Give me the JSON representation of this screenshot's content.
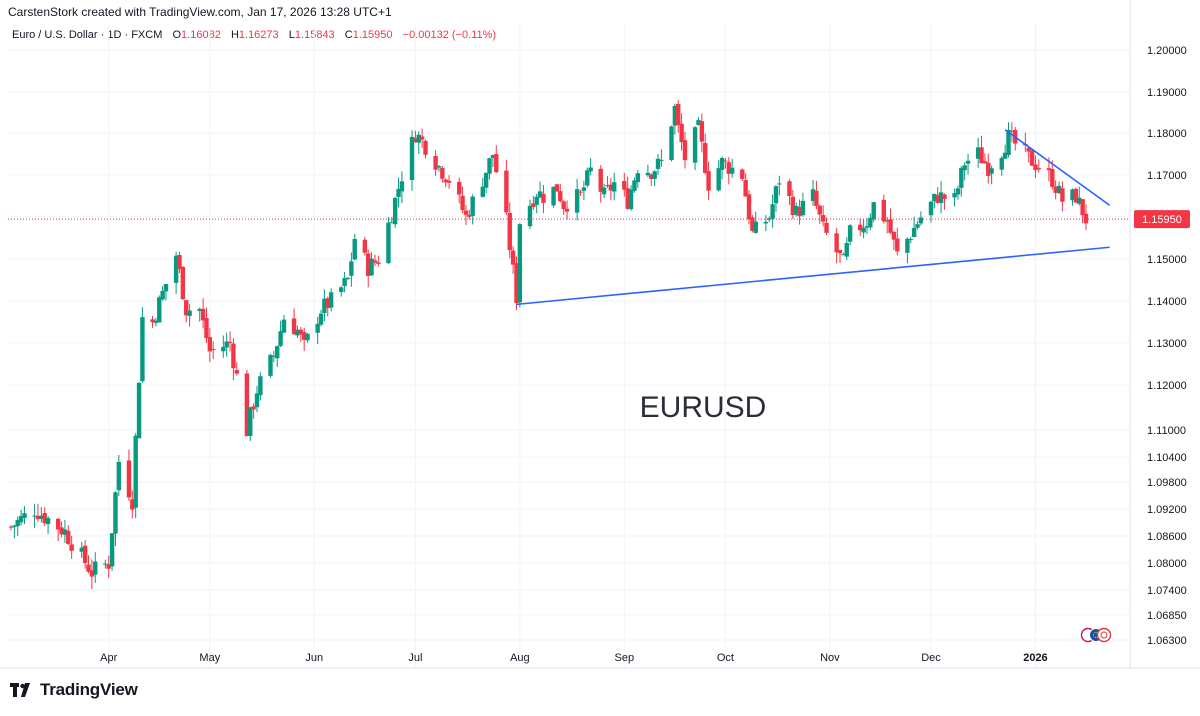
{
  "header": {
    "attribution": "CarstenStork created with TradingView.com, Jan 17, 2026 13:28 UTC+1"
  },
  "legend": {
    "symbol": "Euro / U.S. Dollar · 1D · FXCM",
    "open_label": "O",
    "open": "1.16082",
    "high_label": "H",
    "high": "1.16273",
    "low_label": "L",
    "low": "1.15843",
    "close_label": "C",
    "close": "1.15950",
    "change": "−0.00132 (−0.11%)"
  },
  "footer": {
    "brand": "TradingView"
  },
  "colors": {
    "up": "#089981",
    "down": "#f23645",
    "trendline": "#2962ff",
    "price_line": "#f23645",
    "grid": "#f0f3fa"
  },
  "chart_data": {
    "type": "candlestick",
    "symbol": "EURUSD",
    "annotation": "EURUSD",
    "y_axis_ticks": [
      "1.20000",
      "1.19000",
      "1.18000",
      "1.17000",
      "1.16000",
      "1.15000",
      "1.14000",
      "1.13000",
      "1.12000",
      "1.11000",
      "1.10400",
      "1.09800",
      "1.09200",
      "1.08600",
      "1.08000",
      "1.07400",
      "1.06850",
      "1.06300"
    ],
    "x_axis_ticks": [
      "Apr",
      "May",
      "Jun",
      "Jul",
      "Aug",
      "Sep",
      "Oct",
      "Nov",
      "Dec",
      "2026"
    ],
    "last_price": "1.15950",
    "trendlines": [
      {
        "name": "support",
        "points": [
          [
            1.1395,
            "Aug"
          ],
          [
            1.1528,
            "2026"
          ]
        ],
        "from": {
          "date": "2025-07-31",
          "price": 1.1392
        },
        "to": {
          "date": "2026-01-23",
          "price": 1.1528
        }
      },
      {
        "name": "resistance",
        "from": {
          "date": "2025-12-23",
          "price": 1.1808
        },
        "to": {
          "date": "2026-01-23",
          "price": 1.1628
        }
      }
    ],
    "anchors": [
      {
        "date": "2025-03-03",
        "price": 1.088
      },
      {
        "date": "2025-03-10",
        "price": 1.092
      },
      {
        "date": "2025-03-19",
        "price": 1.087
      },
      {
        "date": "2025-03-27",
        "price": 1.078
      },
      {
        "date": "2025-04-01",
        "price": 1.08
      },
      {
        "date": "2025-04-04",
        "price": 1.103
      },
      {
        "date": "2025-04-08",
        "price": 1.094
      },
      {
        "date": "2025-04-11",
        "price": 1.136
      },
      {
        "date": "2025-04-14",
        "price": 1.135
      },
      {
        "date": "2025-04-21",
        "price": 1.151
      },
      {
        "date": "2025-04-24",
        "price": 1.138
      },
      {
        "date": "2025-04-28",
        "price": 1.138
      },
      {
        "date": "2025-05-01",
        "price": 1.128
      },
      {
        "date": "2025-05-07",
        "price": 1.13
      },
      {
        "date": "2025-05-09",
        "price": 1.122
      },
      {
        "date": "2025-05-12",
        "price": 1.11
      },
      {
        "date": "2025-05-15",
        "price": 1.119
      },
      {
        "date": "2025-05-20",
        "price": 1.127
      },
      {
        "date": "2025-05-23",
        "price": 1.136
      },
      {
        "date": "2025-05-27",
        "price": 1.133
      },
      {
        "date": "2025-05-29",
        "price": 1.129
      },
      {
        "date": "2025-06-03",
        "price": 1.138
      },
      {
        "date": "2025-06-06",
        "price": 1.14
      },
      {
        "date": "2025-06-11",
        "price": 1.145
      },
      {
        "date": "2025-06-13",
        "price": 1.155
      },
      {
        "date": "2025-06-17",
        "price": 1.148
      },
      {
        "date": "2025-06-20",
        "price": 1.15
      },
      {
        "date": "2025-06-24",
        "price": 1.161
      },
      {
        "date": "2025-06-27",
        "price": 1.17
      },
      {
        "date": "2025-07-01",
        "price": 1.18
      },
      {
        "date": "2025-07-04",
        "price": 1.177
      },
      {
        "date": "2025-07-08",
        "price": 1.172
      },
      {
        "date": "2025-07-11",
        "price": 1.169
      },
      {
        "date": "2025-07-16",
        "price": 1.16
      },
      {
        "date": "2025-07-21",
        "price": 1.169
      },
      {
        "date": "2025-07-24",
        "price": 1.175
      },
      {
        "date": "2025-07-28",
        "price": 1.159
      },
      {
        "date": "2025-07-31",
        "price": 1.141
      },
      {
        "date": "2025-08-01",
        "price": 1.159
      },
      {
        "date": "2025-08-06",
        "price": 1.166
      },
      {
        "date": "2025-08-08",
        "price": 1.165
      },
      {
        "date": "2025-08-12",
        "price": 1.167
      },
      {
        "date": "2025-08-14",
        "price": 1.163
      },
      {
        "date": "2025-08-19",
        "price": 1.165
      },
      {
        "date": "2025-08-22",
        "price": 1.171
      },
      {
        "date": "2025-08-26",
        "price": 1.165
      },
      {
        "date": "2025-08-29",
        "price": 1.168
      },
      {
        "date": "2025-09-02",
        "price": 1.164
      },
      {
        "date": "2025-09-05",
        "price": 1.172
      },
      {
        "date": "2025-09-09",
        "price": 1.171
      },
      {
        "date": "2025-09-12",
        "price": 1.173
      },
      {
        "date": "2025-09-16",
        "price": 1.186
      },
      {
        "date": "2025-09-17",
        "price": 1.181
      },
      {
        "date": "2025-09-19",
        "price": 1.174
      },
      {
        "date": "2025-09-23",
        "price": 1.181
      },
      {
        "date": "2025-09-26",
        "price": 1.168
      },
      {
        "date": "2025-09-30",
        "price": 1.173
      },
      {
        "date": "2025-10-02",
        "price": 1.172
      },
      {
        "date": "2025-10-06",
        "price": 1.17
      },
      {
        "date": "2025-10-09",
        "price": 1.156
      },
      {
        "date": "2025-10-14",
        "price": 1.16
      },
      {
        "date": "2025-10-17",
        "price": 1.169
      },
      {
        "date": "2025-10-22",
        "price": 1.161
      },
      {
        "date": "2025-10-27",
        "price": 1.165
      },
      {
        "date": "2025-10-30",
        "price": 1.157
      },
      {
        "date": "2025-11-05",
        "price": 1.149
      },
      {
        "date": "2025-11-07",
        "price": 1.156
      },
      {
        "date": "2025-11-12",
        "price": 1.159
      },
      {
        "date": "2025-11-14",
        "price": 1.163
      },
      {
        "date": "2025-11-18",
        "price": 1.159
      },
      {
        "date": "2025-11-21",
        "price": 1.151
      },
      {
        "date": "2025-11-25",
        "price": 1.156
      },
      {
        "date": "2025-11-28",
        "price": 1.16
      },
      {
        "date": "2025-12-03",
        "price": 1.165
      },
      {
        "date": "2025-12-08",
        "price": 1.164
      },
      {
        "date": "2025-12-11",
        "price": 1.173
      },
      {
        "date": "2025-12-15",
        "price": 1.175
      },
      {
        "date": "2025-12-18",
        "price": 1.172
      },
      {
        "date": "2025-12-22",
        "price": 1.176
      },
      {
        "date": "2025-12-24",
        "price": 1.179
      },
      {
        "date": "2025-12-30",
        "price": 1.174
      },
      {
        "date": "2026-01-02",
        "price": 1.172
      },
      {
        "date": "2026-01-06",
        "price": 1.169
      },
      {
        "date": "2026-01-09",
        "price": 1.164
      },
      {
        "date": "2026-01-13",
        "price": 1.165
      },
      {
        "date": "2026-01-16",
        "price": 1.1595
      }
    ]
  }
}
